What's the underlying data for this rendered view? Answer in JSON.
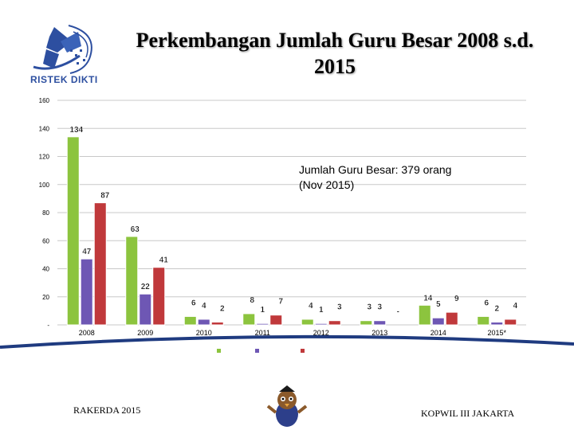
{
  "logo": {
    "text": "RISTEK DIKTI"
  },
  "title_line1": "Perkembangan Jumlah Guru Besar 2008 s.d.",
  "title_line2": "2015",
  "annotation_line1": "Jumlah Guru Besar: 379 orang",
  "annotation_line2": "(Nov 2015)",
  "footer": {
    "left": "RAKERDA 2015",
    "right": "KOPWIL III JAKARTA"
  },
  "colors": {
    "green": "#8cc43e",
    "purple": "#6e57b4",
    "red": "#c0393b",
    "frame": "#1f3b80"
  },
  "chart_data": {
    "type": "bar",
    "title": "Perkembangan Jumlah Guru Besar 2008 s.d. 2015",
    "categories": [
      "2008",
      "2009",
      "2010",
      "2011",
      "2012",
      "2013",
      "2014",
      "2015*"
    ],
    "series": [
      {
        "color": "#8cc43e",
        "values": [
          134,
          63,
          6,
          8,
          4,
          3,
          14,
          6
        ],
        "labels": [
          "134",
          "63",
          "6",
          "8",
          "4",
          "3",
          "14",
          "6"
        ]
      },
      {
        "color": "#6e57b4",
        "values": [
          47,
          22,
          4,
          1,
          1,
          3,
          5,
          2
        ],
        "labels": [
          "47",
          "22",
          "4",
          "1",
          "1",
          "3",
          "5",
          "2"
        ]
      },
      {
        "color": "#c0393b",
        "values": [
          87,
          41,
          2,
          7,
          3,
          0,
          9,
          4
        ],
        "labels": [
          "87",
          "41",
          "2",
          "7",
          "3",
          "-",
          "9",
          "4"
        ]
      }
    ],
    "ylim": [
      0,
      160
    ],
    "yticks": [
      0,
      20,
      40,
      60,
      80,
      100,
      120,
      140,
      160
    ],
    "ytick_labels": [
      "-",
      "20",
      "40",
      "60",
      "80",
      "100",
      "120",
      "140",
      "160"
    ],
    "grid": true,
    "legend_placement": "bottom"
  }
}
